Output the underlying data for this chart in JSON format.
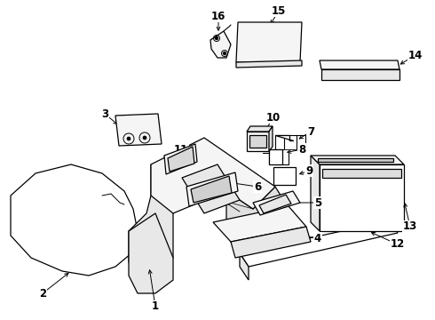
{
  "bg_color": "#ffffff",
  "line_color": "#000000",
  "fig_width": 4.9,
  "fig_height": 3.6,
  "dpi": 100,
  "lw": 0.9,
  "label_fs": 8.5
}
